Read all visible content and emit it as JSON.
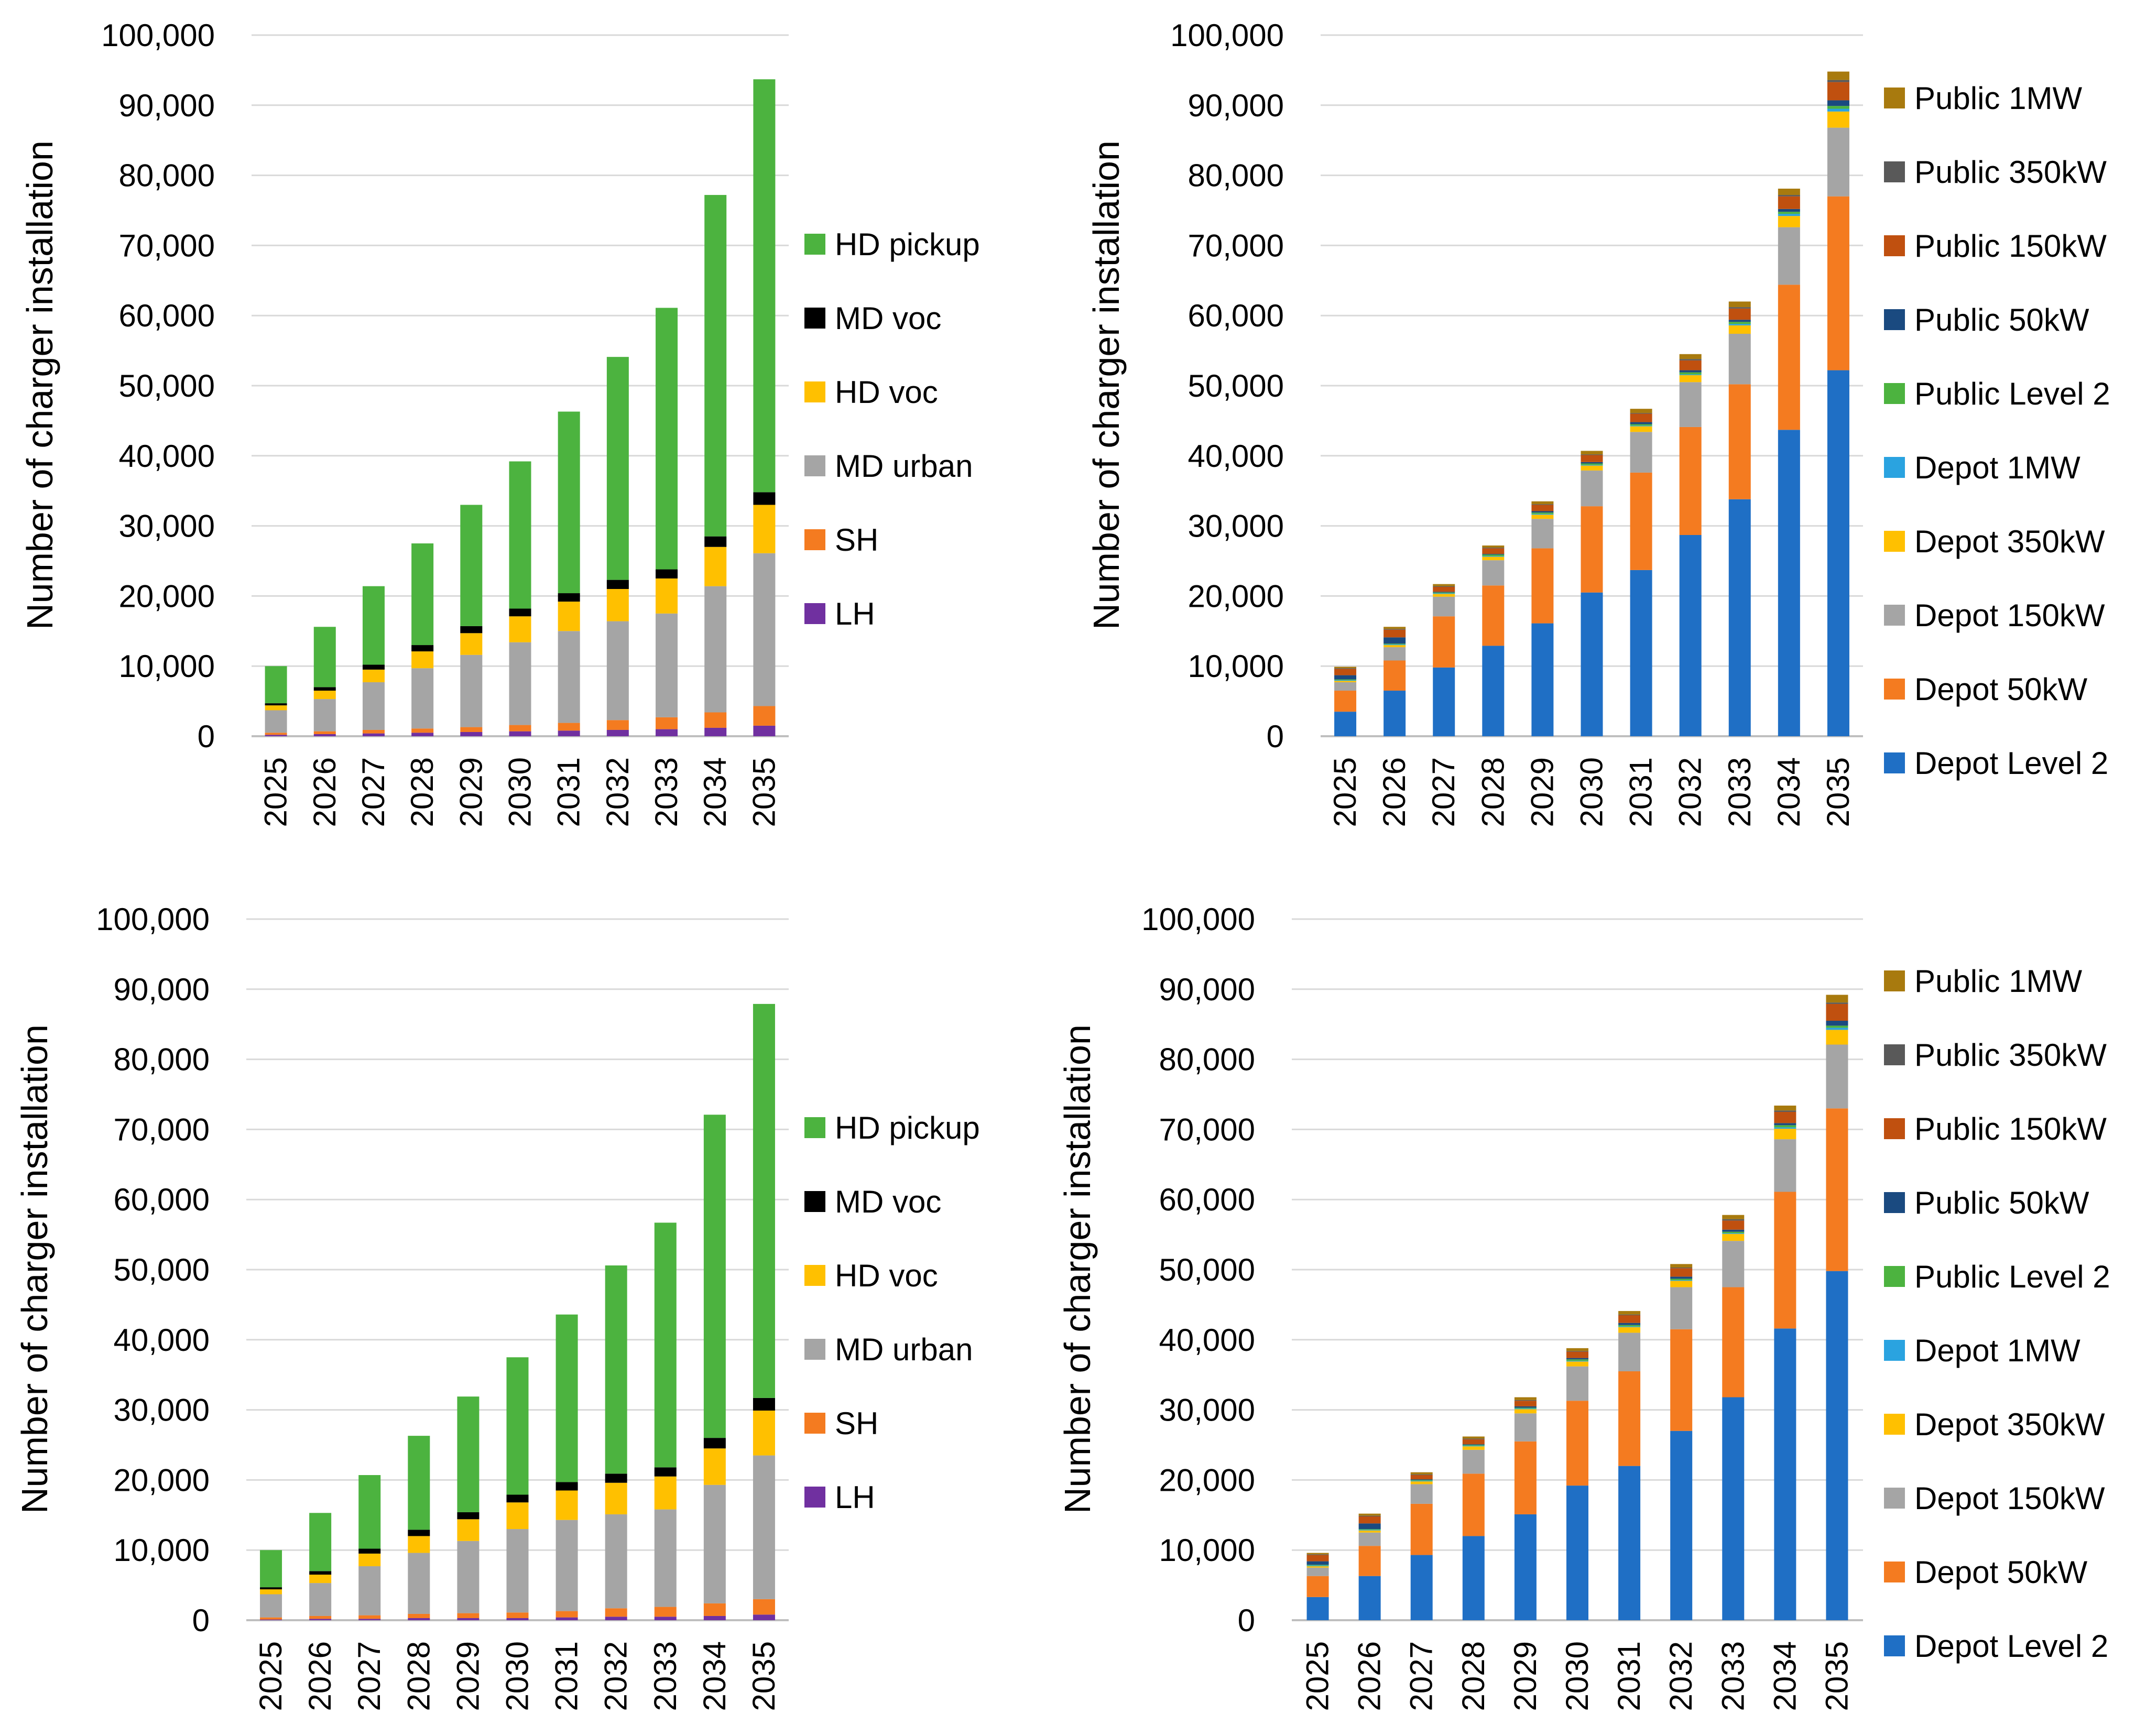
{
  "chart_data": [
    {
      "type": "bar",
      "stacked": true,
      "title": "",
      "xlabel": "",
      "ylabel": "Number of charger installation",
      "ylim": [
        0,
        100000
      ],
      "yticks": [
        "0",
        "10,000",
        "20,000",
        "30,000",
        "40,000",
        "50,000",
        "60,000",
        "70,000",
        "80,000",
        "90,000",
        "100,000"
      ],
      "categories": [
        "2025",
        "2026",
        "2027",
        "2028",
        "2029",
        "2030",
        "2031",
        "2032",
        "2033",
        "2034",
        "2035"
      ],
      "legend_position": "right",
      "series": [
        {
          "name": "LH",
          "color": "#7030A0",
          "values": [
            200,
            300,
            400,
            500,
            600,
            700,
            800,
            900,
            1000,
            1200,
            1500
          ]
        },
        {
          "name": "SH",
          "color": "#F47B20",
          "values": [
            300,
            400,
            500,
            600,
            700,
            900,
            1100,
            1400,
            1700,
            2200,
            2800
          ]
        },
        {
          "name": "MD urban",
          "color": "#A5A5A5",
          "values": [
            3200,
            4600,
            6800,
            8600,
            10300,
            11800,
            13100,
            14100,
            14800,
            18000,
            21800
          ]
        },
        {
          "name": "HD voc",
          "color": "#FFC000",
          "values": [
            700,
            1200,
            1800,
            2400,
            3100,
            3700,
            4200,
            4600,
            5000,
            5600,
            6900
          ]
        },
        {
          "name": "MD voc",
          "color": "#000000",
          "values": [
            300,
            500,
            700,
            900,
            1000,
            1100,
            1200,
            1300,
            1300,
            1500,
            1800
          ]
        },
        {
          "name": "HD pickup",
          "color": "#4CB33F",
          "values": [
            5300,
            8600,
            11200,
            14500,
            17300,
            21000,
            25900,
            31800,
            37300,
            48700,
            58900
          ]
        }
      ]
    },
    {
      "type": "bar",
      "stacked": true,
      "title": "",
      "xlabel": "",
      "ylabel": "Number of charger installation",
      "ylim": [
        0,
        100000
      ],
      "yticks": [
        "0",
        "10,000",
        "20,000",
        "30,000",
        "40,000",
        "50,000",
        "60,000",
        "70,000",
        "80,000",
        "90,000",
        "100,000"
      ],
      "categories": [
        "2025",
        "2026",
        "2027",
        "2028",
        "2029",
        "2030",
        "2031",
        "2032",
        "2033",
        "2034",
        "2035"
      ],
      "legend_position": "right",
      "series": [
        {
          "name": "Depot Level 2",
          "color": "#1F6FC5",
          "values": [
            3500,
            6500,
            9800,
            12900,
            16100,
            20500,
            23700,
            28700,
            33800,
            43700,
            52200
          ]
        },
        {
          "name": "Depot 50kW",
          "color": "#F47B20",
          "values": [
            3000,
            4300,
            7300,
            8600,
            10700,
            12300,
            13900,
            15400,
            16400,
            20700,
            24800
          ]
        },
        {
          "name": "Depot 150kW",
          "color": "#A5A5A5",
          "values": [
            1200,
            1900,
            2800,
            3600,
            4200,
            5100,
            5800,
            6400,
            7200,
            8200,
            9800
          ]
        },
        {
          "name": "Depot 350kW",
          "color": "#FFC000",
          "values": [
            200,
            300,
            400,
            500,
            600,
            700,
            800,
            1000,
            1200,
            1600,
            2300
          ]
        },
        {
          "name": "Depot 1MW",
          "color": "#2AA3E0",
          "values": [
            100,
            100,
            100,
            100,
            100,
            100,
            100,
            100,
            200,
            300,
            400
          ]
        },
        {
          "name": "Public Level 2",
          "color": "#4CB33F",
          "values": [
            100,
            100,
            100,
            200,
            200,
            200,
            200,
            300,
            300,
            300,
            400
          ]
        },
        {
          "name": "Public 50kW",
          "color": "#1A4A80",
          "values": [
            600,
            900,
            100,
            100,
            200,
            200,
            300,
            300,
            300,
            400,
            800
          ]
        },
        {
          "name": "Public 150kW",
          "color": "#C0500F",
          "values": [
            900,
            1100,
            700,
            800,
            900,
            1000,
            1200,
            1400,
            1600,
            1800,
            2600
          ]
        },
        {
          "name": "Public 350kW",
          "color": "#595959",
          "values": [
            100,
            100,
            100,
            100,
            100,
            100,
            100,
            200,
            200,
            200,
            300
          ]
        },
        {
          "name": "Public 1MW",
          "color": "#A87A0E",
          "values": [
            200,
            300,
            300,
            300,
            400,
            500,
            600,
            700,
            800,
            900,
            1200
          ]
        }
      ]
    },
    {
      "type": "bar",
      "stacked": true,
      "title": "",
      "xlabel": "",
      "ylabel": "Number of charger installation",
      "ylim": [
        0,
        100000
      ],
      "yticks": [
        "0",
        "10,000",
        "20,000",
        "30,000",
        "40,000",
        "50,000",
        "60,000",
        "70,000",
        "80,000",
        "90,000",
        "100,000"
      ],
      "categories": [
        "2025",
        "2026",
        "2027",
        "2028",
        "2029",
        "2030",
        "2031",
        "2032",
        "2033",
        "2034",
        "2035"
      ],
      "legend_position": "right",
      "series": [
        {
          "name": "LH",
          "color": "#7030A0",
          "values": [
            100,
            200,
            200,
            300,
            300,
            300,
            400,
            500,
            500,
            600,
            800
          ]
        },
        {
          "name": "SH",
          "color": "#F47B20",
          "values": [
            300,
            400,
            500,
            600,
            700,
            800,
            900,
            1200,
            1400,
            1800,
            2200
          ]
        },
        {
          "name": "MD urban",
          "color": "#A5A5A5",
          "values": [
            3300,
            4700,
            7000,
            8700,
            10300,
            11900,
            13000,
            13400,
            13900,
            16900,
            20500
          ]
        },
        {
          "name": "HD voc",
          "color": "#FFC000",
          "values": [
            700,
            1200,
            1800,
            2400,
            3100,
            3800,
            4200,
            4500,
            4700,
            5200,
            6400
          ]
        },
        {
          "name": "MD voc",
          "color": "#000000",
          "values": [
            300,
            500,
            700,
            900,
            1000,
            1100,
            1200,
            1300,
            1300,
            1500,
            1800
          ]
        },
        {
          "name": "HD pickup",
          "color": "#4CB33F",
          "values": [
            5300,
            8300,
            10500,
            13400,
            16500,
            19600,
            23900,
            29700,
            34900,
            46100,
            56200
          ]
        }
      ]
    },
    {
      "type": "bar",
      "stacked": true,
      "title": "",
      "xlabel": "",
      "ylabel": "Number of charger installation",
      "ylim": [
        0,
        100000
      ],
      "yticks": [
        "0",
        "10,000",
        "20,000",
        "30,000",
        "40,000",
        "50,000",
        "60,000",
        "70,000",
        "80,000",
        "90,000",
        "100,000"
      ],
      "categories": [
        "2025",
        "2026",
        "2027",
        "2028",
        "2029",
        "2030",
        "2031",
        "2032",
        "2033",
        "2034",
        "2035"
      ],
      "legend_position": "right",
      "series": [
        {
          "name": "Depot Level 2",
          "color": "#1F6FC5",
          "values": [
            3300,
            6300,
            9300,
            12000,
            15100,
            19200,
            22000,
            27000,
            31800,
            41600,
            49800
          ]
        },
        {
          "name": "Depot 50kW",
          "color": "#F47B20",
          "values": [
            3000,
            4300,
            7300,
            8900,
            10400,
            12100,
            13500,
            14500,
            15700,
            19500,
            23200
          ]
        },
        {
          "name": "Depot 150kW",
          "color": "#A5A5A5",
          "values": [
            1200,
            1900,
            2800,
            3400,
            4000,
            4900,
            5500,
            6000,
            6600,
            7500,
            9100
          ]
        },
        {
          "name": "Depot 350kW",
          "color": "#FFC000",
          "values": [
            200,
            300,
            400,
            500,
            600,
            700,
            800,
            900,
            1000,
            1500,
            2100
          ]
        },
        {
          "name": "Depot 1MW",
          "color": "#2AA3E0",
          "values": [
            100,
            100,
            100,
            100,
            100,
            100,
            100,
            100,
            100,
            200,
            300
          ]
        },
        {
          "name": "Public Level 2",
          "color": "#4CB33F",
          "values": [
            100,
            100,
            100,
            100,
            100,
            200,
            200,
            200,
            200,
            300,
            300
          ]
        },
        {
          "name": "Public 50kW",
          "color": "#1A4A80",
          "values": [
            500,
            800,
            100,
            100,
            200,
            200,
            300,
            300,
            300,
            300,
            700
          ]
        },
        {
          "name": "Public 150kW",
          "color": "#C0500F",
          "values": [
            900,
            1000,
            600,
            700,
            800,
            900,
            1100,
            1200,
            1300,
            1600,
            2400
          ]
        },
        {
          "name": "Public 350kW",
          "color": "#595959",
          "values": [
            100,
            100,
            100,
            100,
            100,
            100,
            100,
            100,
            200,
            200,
            200
          ]
        },
        {
          "name": "Public 1MW",
          "color": "#A87A0E",
          "values": [
            200,
            300,
            300,
            300,
            400,
            400,
            500,
            500,
            600,
            700,
            1100
          ]
        }
      ]
    }
  ]
}
